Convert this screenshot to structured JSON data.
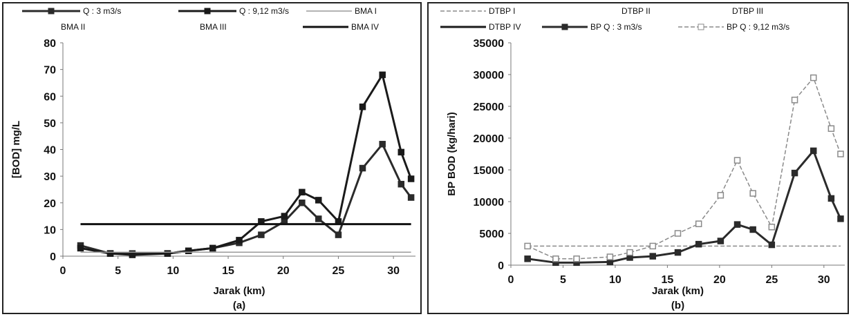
{
  "chart_data": [
    {
      "type": "line",
      "panel_label": "(a)",
      "xlabel": "Jarak (km)",
      "ylabel": "[BOD] mg/L",
      "xlim": [
        0,
        32
      ],
      "ylim": [
        0,
        80
      ],
      "xticks": [
        "0",
        "5",
        "10",
        "15",
        "20",
        "25",
        "30"
      ],
      "yticks": [
        "0",
        "10",
        "20",
        "30",
        "40",
        "50",
        "60",
        "70",
        "80"
      ],
      "grid": false,
      "legend_position": "top",
      "series": [
        {
          "name": "Q : 3 m3/s",
          "style": "thick",
          "color": "#2b2b2b",
          "markers": true,
          "x": [
            1.6,
            4.3,
            6.3,
            9.5,
            11.4,
            13.6,
            16.0,
            18.0,
            20.1,
            21.7,
            23.2,
            25.0,
            27.2,
            29.0,
            30.7,
            31.6
          ],
          "y": [
            4,
            1,
            1,
            1,
            2,
            3,
            5,
            8,
            13,
            20,
            14,
            8,
            33,
            42,
            27,
            22
          ]
        },
        {
          "name": "Q : 9,12 m3/s",
          "style": "thick",
          "color": "#1a1a1a",
          "markers": true,
          "x": [
            1.6,
            4.3,
            6.3,
            9.5,
            11.4,
            13.6,
            16.0,
            18.0,
            20.1,
            21.7,
            23.2,
            25.0,
            27.2,
            29.0,
            30.7,
            31.6
          ],
          "y": [
            3,
            1,
            0.5,
            1,
            2,
            3,
            6,
            13,
            15,
            24,
            21,
            13,
            56,
            68,
            39,
            29
          ]
        },
        {
          "name": "BMA I",
          "style": "thin",
          "color": "#9a9a9a",
          "markers": false,
          "x": [
            1.6,
            31.6
          ],
          "y": [
            1.5,
            1.5
          ]
        },
        {
          "name": "BMA II",
          "style": "invisible",
          "color": "#ffffff",
          "markers": false,
          "x": [],
          "y": []
        },
        {
          "name": "BMA III",
          "style": "invisible",
          "color": "#ffffff",
          "markers": false,
          "x": [],
          "y": []
        },
        {
          "name": "BMA IV",
          "style": "thick",
          "color": "#111111",
          "markers": false,
          "x": [
            1.6,
            31.6
          ],
          "y": [
            12,
            12
          ]
        }
      ]
    },
    {
      "type": "line",
      "panel_label": "(b)",
      "xlabel": "Jarak (km)",
      "ylabel": "BP BOD (kg/hari)",
      "xlim": [
        0,
        32
      ],
      "ylim": [
        0,
        35000
      ],
      "xticks": [
        "0",
        "5",
        "10",
        "15",
        "20",
        "25",
        "30"
      ],
      "yticks": [
        "0",
        "5000",
        "10000",
        "15000",
        "20000",
        "25000",
        "30000",
        "35000"
      ],
      "grid": false,
      "legend_position": "top",
      "series": [
        {
          "name": "DTBP I",
          "style": "dashed",
          "color": "#8a8a8a",
          "markers": false,
          "x": [
            1.6,
            31.6
          ],
          "y": [
            3000,
            3000
          ]
        },
        {
          "name": "DTBP II",
          "style": "invisible",
          "color": "#ffffff",
          "markers": false,
          "x": [],
          "y": []
        },
        {
          "name": "DTBP III",
          "style": "invisible",
          "color": "#ffffff",
          "markers": false,
          "x": [],
          "y": []
        },
        {
          "name": "DTBP IV",
          "style": "thick",
          "color": "#1a1a1a",
          "markers": false,
          "x": [],
          "y": []
        },
        {
          "name": "BP Q : 3 m3/s",
          "style": "thick",
          "color": "#2b2b2b",
          "markers": true,
          "x": [
            1.6,
            4.3,
            6.3,
            9.5,
            11.4,
            13.6,
            16.0,
            18.0,
            20.1,
            21.7,
            23.2,
            25.0,
            27.2,
            29.0,
            30.7,
            31.6
          ],
          "y": [
            1000,
            400,
            400,
            500,
            1200,
            1400,
            2000,
            3300,
            3800,
            6400,
            5600,
            3200,
            14500,
            18000,
            10500,
            7300
          ]
        },
        {
          "name": "BP Q : 9,12 m3/s",
          "style": "dashed",
          "color": "#8a8a8a",
          "markers": true,
          "x": [
            1.6,
            4.3,
            6.3,
            9.5,
            11.4,
            13.6,
            16.0,
            18.0,
            20.1,
            21.7,
            23.2,
            25.0,
            27.2,
            29.0,
            30.7,
            31.6
          ],
          "y": [
            3000,
            1000,
            1000,
            1300,
            2000,
            3000,
            5000,
            6500,
            11000,
            16500,
            11300,
            6000,
            26000,
            29500,
            21500,
            17500
          ]
        }
      ]
    }
  ]
}
